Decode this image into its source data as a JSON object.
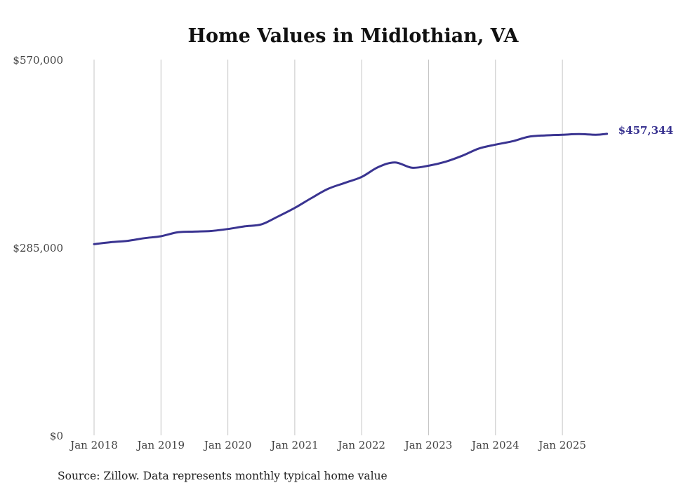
{
  "chart_data": {
    "type": "line",
    "title": "Home Values in Midlothian, VA",
    "xlabel": "",
    "ylabel": "",
    "source": "Source: Zillow. Data represents monthly typical home value",
    "ylim": [
      0,
      570000
    ],
    "y_ticks": [
      {
        "value": 0,
        "label": "$0"
      },
      {
        "value": 285000,
        "label": "$285,000"
      },
      {
        "value": 570000,
        "label": "$570,000"
      }
    ],
    "x_ticks": [
      "Jan 2018",
      "Jan 2019",
      "Jan 2020",
      "Jan 2021",
      "Jan 2022",
      "Jan 2023",
      "Jan 2024",
      "Jan 2025"
    ],
    "x_range": [
      "2018-01",
      "2025-09"
    ],
    "grid": {
      "vertical": true,
      "horizontal": false
    },
    "line_color": "#3a3491",
    "end_label": "$457,344",
    "series": [
      {
        "name": "",
        "points": [
          {
            "date": "2018-01",
            "value": 290000
          },
          {
            "date": "2018-04",
            "value": 293000
          },
          {
            "date": "2018-07",
            "value": 295000
          },
          {
            "date": "2018-10",
            "value": 299000
          },
          {
            "date": "2019-01",
            "value": 302000
          },
          {
            "date": "2019-04",
            "value": 308000
          },
          {
            "date": "2019-07",
            "value": 309000
          },
          {
            "date": "2019-10",
            "value": 310000
          },
          {
            "date": "2020-01",
            "value": 313000
          },
          {
            "date": "2020-04",
            "value": 317000
          },
          {
            "date": "2020-07",
            "value": 320000
          },
          {
            "date": "2020-10",
            "value": 332000
          },
          {
            "date": "2021-01",
            "value": 345000
          },
          {
            "date": "2021-04",
            "value": 360000
          },
          {
            "date": "2021-07",
            "value": 374000
          },
          {
            "date": "2021-10",
            "value": 383000
          },
          {
            "date": "2022-01",
            "value": 392000
          },
          {
            "date": "2022-04",
            "value": 407000
          },
          {
            "date": "2022-07",
            "value": 414000
          },
          {
            "date": "2022-10",
            "value": 406000
          },
          {
            "date": "2023-01",
            "value": 409000
          },
          {
            "date": "2023-04",
            "value": 415000
          },
          {
            "date": "2023-07",
            "value": 424000
          },
          {
            "date": "2023-10",
            "value": 435000
          },
          {
            "date": "2024-01",
            "value": 441000
          },
          {
            "date": "2024-04",
            "value": 446000
          },
          {
            "date": "2024-07",
            "value": 453000
          },
          {
            "date": "2024-10",
            "value": 455000
          },
          {
            "date": "2025-01",
            "value": 456000
          },
          {
            "date": "2025-04",
            "value": 457000
          },
          {
            "date": "2025-07",
            "value": 456000
          },
          {
            "date": "2025-09",
            "value": 457344
          }
        ]
      }
    ]
  }
}
